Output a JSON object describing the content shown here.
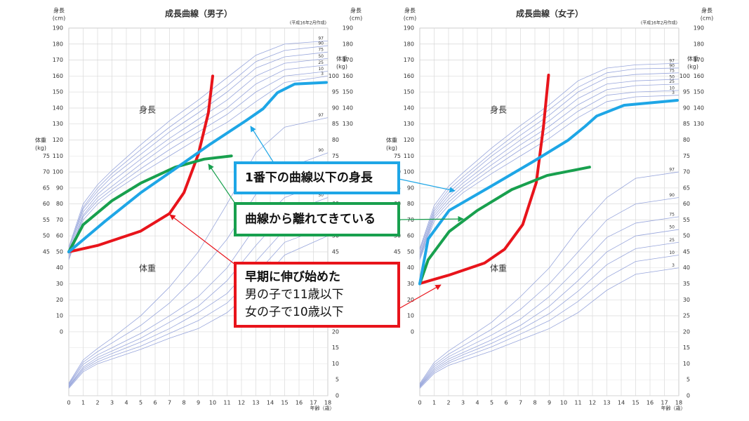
{
  "chart_data": [
    {
      "type": "line",
      "title": "成長曲線（男子）",
      "note": "(平成16年2月作成)",
      "y_label": [
        "身長",
        "(cm)"
      ],
      "y2_label": [
        "体重",
        "(kg)"
      ],
      "height_region": "身長",
      "weight_region": "体重",
      "x_label": "年齢（歳）",
      "xlim": [
        0,
        18
      ],
      "xticks": [
        0,
        1,
        2,
        3,
        4,
        5,
        6,
        7,
        8,
        9,
        10,
        11,
        12,
        13,
        14,
        15,
        16,
        17,
        18
      ],
      "ylim": [
        -40,
        190
      ],
      "yticks": [
        0,
        10,
        20,
        30,
        40,
        50,
        60,
        70,
        80,
        90,
        100,
        110,
        120,
        130,
        140,
        150,
        160,
        170,
        180,
        190
      ],
      "yticks_right": [
        130,
        140,
        150,
        160,
        170,
        180,
        190
      ],
      "y2lim": [
        0,
        115
      ],
      "y2ticks": [
        0,
        5,
        10,
        15,
        20,
        25,
        30,
        35,
        40,
        45,
        50,
        55,
        60,
        65,
        70,
        75,
        80,
        85,
        90,
        95,
        100
      ],
      "y2ticks_left": [
        45,
        50,
        55,
        60,
        65,
        70,
        75
      ],
      "grid": true,
      "percentile_color": "#98a6dc",
      "x": [
        0,
        1,
        2,
        3,
        5,
        7,
        9,
        11,
        13,
        15,
        18
      ],
      "series": [
        {
          "name": "97",
          "axis": "y",
          "values": [
            53,
            80,
            92,
            101,
            117,
            132,
            145,
            159,
            173,
            180,
            182
          ]
        },
        {
          "name": "90",
          "axis": "y",
          "values": [
            52,
            78,
            90,
            99,
            114,
            128,
            141,
            154,
            169,
            176,
            179
          ]
        },
        {
          "name": "75",
          "axis": "y",
          "values": [
            50.5,
            77,
            88,
            97,
            111,
            125,
            137,
            150,
            165,
            172,
            175
          ]
        },
        {
          "name": "50",
          "axis": "y",
          "values": [
            49,
            75,
            86,
            94,
            108,
            121,
            133,
            145,
            160,
            168,
            171
          ]
        },
        {
          "name": "25",
          "axis": "y",
          "values": [
            47.5,
            73,
            84,
            91,
            105,
            118,
            129,
            140,
            155,
            164,
            167
          ]
        },
        {
          "name": "10",
          "axis": "y",
          "values": [
            46,
            72,
            82,
            89,
            102,
            114,
            125,
            136,
            150,
            160,
            163
          ]
        },
        {
          "name": "3",
          "axis": "y",
          "values": [
            45,
            70,
            80,
            87,
            99,
            110,
            121,
            131,
            144,
            156,
            160
          ]
        },
        {
          "name": "97",
          "axis": "y2",
          "values": [
            3.9,
            11.2,
            14.8,
            18,
            25,
            34,
            45,
            60,
            76,
            84,
            87
          ]
        },
        {
          "name": "90",
          "axis": "y2",
          "values": [
            3.6,
            10.5,
            13.8,
            16.5,
            22,
            29,
            38,
            49,
            63,
            71,
            76
          ]
        },
        {
          "name": "75",
          "axis": "y2",
          "values": [
            3.3,
            9.8,
            12.8,
            15,
            19.5,
            25,
            31,
            40,
            53,
            62,
            67
          ]
        },
        {
          "name": "50",
          "axis": "y2",
          "values": [
            3,
            9,
            12,
            14,
            18,
            23,
            28,
            36,
            47,
            57,
            62
          ]
        },
        {
          "name": "25",
          "axis": "y2",
          "values": [
            2.8,
            8.5,
            11.3,
            13.2,
            16.8,
            21,
            26,
            32,
            42,
            52,
            57
          ]
        },
        {
          "name": "10",
          "axis": "y2",
          "values": [
            2.6,
            8,
            10.6,
            12.4,
            15.5,
            19.5,
            23.5,
            29,
            38,
            48,
            53
          ]
        },
        {
          "name": "3",
          "axis": "y2",
          "values": [
            2.3,
            7.5,
            10,
            11.5,
            14.5,
            18,
            21,
            26,
            34,
            44,
            50
          ]
        }
      ],
      "highlights": [
        {
          "color": "#e8141b",
          "x": [
            0,
            2,
            5,
            7,
            8,
            9,
            9.7,
            10
          ],
          "values": [
            50,
            54,
            63,
            74,
            87,
            111,
            137,
            160
          ]
        },
        {
          "color": "#18a04e",
          "x": [
            0,
            1,
            3,
            5,
            7.4,
            9.4,
            11.3
          ],
          "values": [
            50,
            67,
            82,
            93,
            103,
            108,
            110
          ]
        },
        {
          "color": "#1ea6e6",
          "x": [
            0,
            2.5,
            5,
            7.4,
            9.85,
            12.3,
            13.5,
            14.5,
            15.7,
            17.9
          ],
          "values": [
            50,
            69,
            87,
            102,
            117.5,
            132,
            139.5,
            149.6,
            155,
            156
          ]
        }
      ]
    },
    {
      "type": "line",
      "title": "成長曲線（女子）",
      "note": "(平成16年2月作成)",
      "y_label": [
        "身長",
        "(cm)"
      ],
      "y2_label": [
        "体重",
        "(kg)"
      ],
      "height_region": "身長",
      "weight_region": "体重",
      "x_label": "年齢（歳）",
      "xlim": [
        0,
        18
      ],
      "xticks": [
        0,
        1,
        2,
        3,
        4,
        5,
        6,
        7,
        8,
        9,
        10,
        11,
        12,
        13,
        14,
        15,
        16,
        17,
        18
      ],
      "ylim": [
        -40,
        190
      ],
      "yticks": [
        0,
        10,
        20,
        30,
        40,
        50,
        60,
        70,
        80,
        90,
        100,
        110,
        120,
        130,
        140,
        150,
        160,
        170,
        180,
        190
      ],
      "yticks_right": [
        130,
        140,
        150,
        160,
        170,
        180,
        190
      ],
      "y2lim": [
        0,
        115
      ],
      "y2ticks": [
        0,
        5,
        10,
        15,
        20,
        25,
        30,
        35,
        40,
        45,
        50,
        55,
        60,
        65,
        70,
        75,
        80,
        85,
        90,
        95,
        100
      ],
      "y2ticks_left": [
        45,
        50,
        55,
        60,
        65,
        70,
        75
      ],
      "grid": true,
      "percentile_color": "#98a6dc",
      "x": [
        0,
        1,
        2,
        3,
        5,
        7,
        9,
        11,
        13,
        15,
        18
      ],
      "series": [
        {
          "name": "97",
          "axis": "y",
          "values": [
            52,
            79,
            91,
            99.5,
            115,
            129,
            142,
            157,
            165,
            167,
            168
          ]
        },
        {
          "name": "90",
          "axis": "y",
          "values": [
            51,
            77,
            89,
            97,
            112,
            126,
            139,
            153,
            162,
            164.5,
            165
          ]
        },
        {
          "name": "75",
          "axis": "y",
          "values": [
            49.5,
            75.5,
            87,
            95,
            110,
            123,
            135.5,
            150,
            159,
            161,
            162
          ]
        },
        {
          "name": "50",
          "axis": "y",
          "values": [
            48,
            74,
            85,
            93,
            107,
            120,
            132,
            146,
            155,
            157,
            158
          ]
        },
        {
          "name": "25",
          "axis": "y",
          "values": [
            47,
            72.5,
            83,
            91,
            104.5,
            117,
            128.5,
            142,
            151.5,
            154,
            155
          ]
        },
        {
          "name": "10",
          "axis": "y",
          "values": [
            46,
            71,
            81,
            89,
            102,
            114,
            125,
            138,
            148,
            150,
            151
          ]
        },
        {
          "name": "3",
          "axis": "y",
          "values": [
            45,
            69,
            79,
            87,
            99,
            110,
            121,
            134,
            144,
            147,
            148
          ]
        },
        {
          "name": "97",
          "axis": "y2",
          "values": [
            3.8,
            10.4,
            14,
            17,
            23,
            31,
            40,
            52,
            62,
            68,
            70
          ]
        },
        {
          "name": "90",
          "axis": "y2",
          "values": [
            3.5,
            9.7,
            13,
            15.6,
            20.8,
            27,
            35,
            45,
            55,
            60,
            62
          ]
        },
        {
          "name": "75",
          "axis": "y2",
          "values": [
            3.2,
            9.1,
            12.2,
            14.5,
            19,
            24,
            31,
            40,
            49.5,
            54,
            56
          ]
        },
        {
          "name": "50",
          "axis": "y2",
          "values": [
            3,
            8.5,
            11.5,
            13.5,
            17.5,
            22,
            28,
            36,
            45,
            50,
            52
          ]
        },
        {
          "name": "25",
          "axis": "y2",
          "values": [
            2.8,
            8,
            10.8,
            12.8,
            16.4,
            20.7,
            25.7,
            32.7,
            41,
            46,
            48
          ]
        },
        {
          "name": "10",
          "axis": "y2",
          "values": [
            2.6,
            7.5,
            10.2,
            12,
            15.3,
            19.3,
            23.5,
            29.5,
            37,
            42,
            44
          ]
        },
        {
          "name": "3",
          "axis": "y2",
          "values": [
            2.3,
            7,
            9.5,
            11,
            14,
            17.5,
            21,
            26,
            33,
            38,
            40
          ]
        }
      ],
      "highlights": [
        {
          "color": "#e8141b",
          "x": [
            0,
            2.04,
            4.5,
            5.9,
            7.15,
            8.1,
            8.6,
            8.95
          ],
          "values": [
            30.2,
            35.5,
            43,
            51.7,
            67,
            93.5,
            128.6,
            160.6
          ]
        },
        {
          "color": "#18a04e",
          "x": [
            0,
            0.58,
            2.04,
            4,
            6.4,
            8.85,
            11.8
          ],
          "values": [
            30,
            45,
            62.7,
            75.9,
            89,
            97.8,
            103
          ]
        },
        {
          "color": "#1ea6e6",
          "x": [
            0,
            0.58,
            2.04,
            5,
            7.9,
            10.3,
            11.5,
            12.3,
            14.2,
            17.9
          ],
          "values": [
            30,
            58,
            75.9,
            91.3,
            106.6,
            119.8,
            128.6,
            135,
            141.7,
            144.8
          ]
        }
      ]
    }
  ],
  "annotations": [
    {
      "color": "#1ea6e6",
      "lines": [
        "1番下の曲線以下の身長"
      ]
    },
    {
      "color": "#18a04e",
      "lines": [
        "曲線から離れてきている"
      ]
    },
    {
      "color": "#e8141b",
      "lines": [
        "早期に伸び始めた",
        "男の子で11歳以下",
        "女の子で10歳以下"
      ]
    }
  ]
}
